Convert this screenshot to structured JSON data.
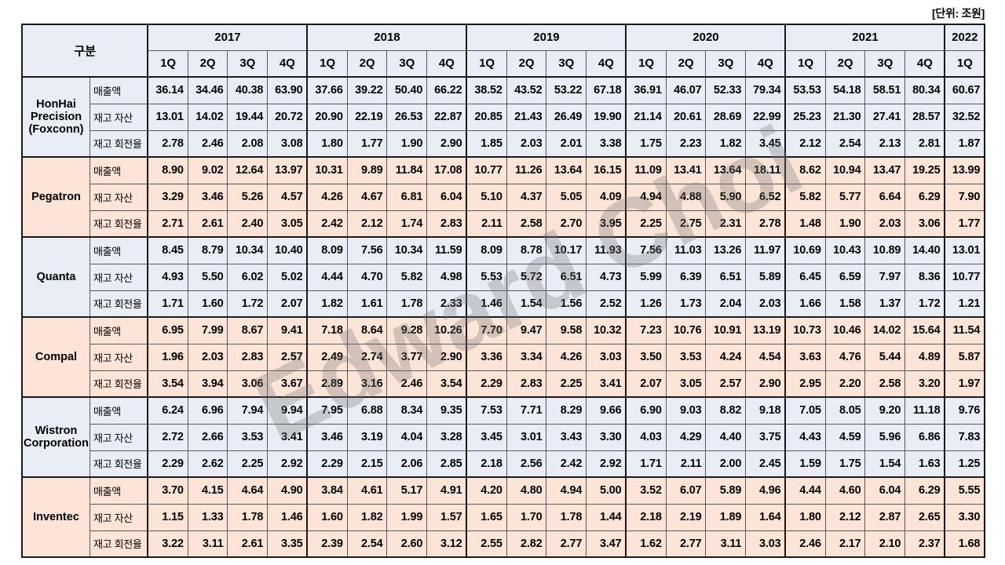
{
  "unit_label": "[단위: 조원]",
  "watermark": "Edward Choi",
  "colors": {
    "band_blue": "#e9eef6",
    "band_peach": "#fce4d6",
    "border_thin": "#595959",
    "border_thick": "#1a1a1a"
  },
  "header": {
    "gubun_label": "구분",
    "year_groups": [
      {
        "year": "2017",
        "quarters": [
          "1Q",
          "2Q",
          "3Q",
          "4Q"
        ]
      },
      {
        "year": "2018",
        "quarters": [
          "1Q",
          "2Q",
          "3Q",
          "4Q"
        ]
      },
      {
        "year": "2019",
        "quarters": [
          "1Q",
          "2Q",
          "3Q",
          "4Q"
        ]
      },
      {
        "year": "2020",
        "quarters": [
          "1Q",
          "2Q",
          "3Q",
          "4Q"
        ]
      },
      {
        "year": "2021",
        "quarters": [
          "1Q",
          "2Q",
          "3Q",
          "4Q"
        ]
      },
      {
        "year": "2022",
        "quarters": [
          "1Q"
        ]
      }
    ]
  },
  "companies": [
    {
      "name": "HonHai Precision (Foxconn)",
      "band": "blue",
      "metrics": [
        {
          "label": "매출액",
          "values": [
            "36.14",
            "34.46",
            "40.38",
            "63.90",
            "37.66",
            "39.22",
            "50.40",
            "66.22",
            "38.52",
            "43.52",
            "53.22",
            "67.18",
            "36.91",
            "46.07",
            "52.33",
            "79.34",
            "53.53",
            "54.18",
            "58.51",
            "80.34",
            "60.67"
          ]
        },
        {
          "label": "재고 자산",
          "values": [
            "13.01",
            "14.02",
            "19.44",
            "20.72",
            "20.90",
            "22.19",
            "26.53",
            "22.87",
            "20.85",
            "21.43",
            "26.49",
            "19.90",
            "21.14",
            "20.61",
            "28.69",
            "22.99",
            "25.23",
            "21.30",
            "27.41",
            "28.57",
            "32.52"
          ]
        },
        {
          "label": "재고 회전율",
          "values": [
            "2.78",
            "2.46",
            "2.08",
            "3.08",
            "1.80",
            "1.77",
            "1.90",
            "2.90",
            "1.85",
            "2.03",
            "2.01",
            "3.38",
            "1.75",
            "2.23",
            "1.82",
            "3.45",
            "2.12",
            "2.54",
            "2.13",
            "2.81",
            "1.87"
          ]
        }
      ]
    },
    {
      "name": "Pegatron",
      "band": "peach",
      "metrics": [
        {
          "label": "매출액",
          "values": [
            "8.90",
            "9.02",
            "12.64",
            "13.97",
            "10.31",
            "9.89",
            "11.84",
            "17.08",
            "10.77",
            "11.26",
            "13.64",
            "16.15",
            "11.09",
            "13.41",
            "13.64",
            "18.11",
            "8.62",
            "10.94",
            "13.47",
            "19.25",
            "13.99"
          ]
        },
        {
          "label": "재고 자산",
          "values": [
            "3.29",
            "3.46",
            "5.26",
            "4.57",
            "4.26",
            "4.67",
            "6.81",
            "6.04",
            "5.10",
            "4.37",
            "5.05",
            "4.09",
            "4.94",
            "4.88",
            "5.90",
            "6.52",
            "5.82",
            "5.77",
            "6.64",
            "6.29",
            "7.90"
          ]
        },
        {
          "label": "재고 회전율",
          "values": [
            "2.71",
            "2.61",
            "2.40",
            "3.05",
            "2.42",
            "2.12",
            "1.74",
            "2.83",
            "2.11",
            "2.58",
            "2.70",
            "3.95",
            "2.25",
            "2.75",
            "2.31",
            "2.78",
            "1.48",
            "1.90",
            "2.03",
            "3.06",
            "1.77"
          ]
        }
      ]
    },
    {
      "name": "Quanta",
      "band": "blue",
      "metrics": [
        {
          "label": "매출액",
          "values": [
            "8.45",
            "8.79",
            "10.34",
            "10.40",
            "8.09",
            "7.56",
            "10.34",
            "11.59",
            "8.09",
            "8.78",
            "10.17",
            "11.93",
            "7.56",
            "11.03",
            "13.26",
            "11.97",
            "10.69",
            "10.43",
            "10.89",
            "14.40",
            "13.01"
          ]
        },
        {
          "label": "재고 자산",
          "values": [
            "4.93",
            "5.50",
            "6.02",
            "5.02",
            "4.44",
            "4.70",
            "5.82",
            "4.98",
            "5.53",
            "5.72",
            "6.51",
            "4.73",
            "5.99",
            "6.39",
            "6.51",
            "5.89",
            "6.45",
            "6.59",
            "7.97",
            "8.36",
            "10.77"
          ]
        },
        {
          "label": "재고 회전율",
          "values": [
            "1.71",
            "1.60",
            "1.72",
            "2.07",
            "1.82",
            "1.61",
            "1.78",
            "2.33",
            "1.46",
            "1.54",
            "1.56",
            "2.52",
            "1.26",
            "1.73",
            "2.04",
            "2.03",
            "1.66",
            "1.58",
            "1.37",
            "1.72",
            "1.21"
          ]
        }
      ]
    },
    {
      "name": "Compal",
      "band": "peach",
      "metrics": [
        {
          "label": "매출액",
          "values": [
            "6.95",
            "7.99",
            "8.67",
            "9.41",
            "7.18",
            "8.64",
            "9.28",
            "10.26",
            "7.70",
            "9.47",
            "9.58",
            "10.32",
            "7.23",
            "10.76",
            "10.91",
            "13.19",
            "10.73",
            "10.46",
            "14.02",
            "15.64",
            "11.54"
          ]
        },
        {
          "label": "재고 자산",
          "values": [
            "1.96",
            "2.03",
            "2.83",
            "2.57",
            "2.49",
            "2.74",
            "3.77",
            "2.90",
            "3.36",
            "3.34",
            "4.26",
            "3.03",
            "3.50",
            "3.53",
            "4.24",
            "4.54",
            "3.63",
            "4.76",
            "5.44",
            "4.89",
            "5.87"
          ]
        },
        {
          "label": "재고 회전율",
          "values": [
            "3.54",
            "3.94",
            "3.06",
            "3.67",
            "2.89",
            "3.16",
            "2.46",
            "3.54",
            "2.29",
            "2.83",
            "2.25",
            "3.41",
            "2.07",
            "3.05",
            "2.57",
            "2.90",
            "2.95",
            "2.20",
            "2.58",
            "3.20",
            "1.97"
          ]
        }
      ]
    },
    {
      "name": "Wistron Corporation",
      "band": "blue",
      "metrics": [
        {
          "label": "매출액",
          "values": [
            "6.24",
            "6.96",
            "7.94",
            "9.94",
            "7.95",
            "6.88",
            "8.34",
            "9.35",
            "7.53",
            "7.71",
            "8.29",
            "9.66",
            "6.90",
            "9.03",
            "8.82",
            "9.18",
            "7.05",
            "8.05",
            "9.20",
            "11.18",
            "9.76"
          ]
        },
        {
          "label": "재고 자산",
          "values": [
            "2.72",
            "2.66",
            "3.53",
            "3.41",
            "3.46",
            "3.19",
            "4.04",
            "3.28",
            "3.45",
            "3.01",
            "3.43",
            "3.30",
            "4.03",
            "4.29",
            "4.40",
            "3.75",
            "4.43",
            "4.59",
            "5.96",
            "6.86",
            "7.83"
          ]
        },
        {
          "label": "재고 회전율",
          "values": [
            "2.29",
            "2.62",
            "2.25",
            "2.92",
            "2.29",
            "2.15",
            "2.06",
            "2.85",
            "2.18",
            "2.56",
            "2.42",
            "2.92",
            "1.71",
            "2.11",
            "2.00",
            "2.45",
            "1.59",
            "1.75",
            "1.54",
            "1.63",
            "1.25"
          ]
        }
      ]
    },
    {
      "name": "Inventec",
      "band": "peach",
      "metrics": [
        {
          "label": "매출액",
          "values": [
            "3.70",
            "4.15",
            "4.64",
            "4.90",
            "3.84",
            "4.61",
            "5.17",
            "4.91",
            "4.20",
            "4.80",
            "4.94",
            "5.00",
            "3.52",
            "6.07",
            "5.89",
            "4.96",
            "4.44",
            "4.60",
            "6.04",
            "6.29",
            "5.55"
          ]
        },
        {
          "label": "재고 자산",
          "values": [
            "1.15",
            "1.33",
            "1.78",
            "1.46",
            "1.60",
            "1.82",
            "1.99",
            "1.57",
            "1.65",
            "1.70",
            "1.78",
            "1.44",
            "2.18",
            "2.19",
            "1.89",
            "1.64",
            "1.80",
            "2.12",
            "2.87",
            "2.65",
            "3.30"
          ]
        },
        {
          "label": "재고 회전율",
          "values": [
            "3.22",
            "3.11",
            "2.61",
            "3.35",
            "2.39",
            "2.54",
            "2.60",
            "3.12",
            "2.55",
            "2.82",
            "2.77",
            "3.47",
            "1.62",
            "2.77",
            "3.11",
            "3.03",
            "2.46",
            "2.17",
            "2.10",
            "2.37",
            "1.68"
          ]
        }
      ]
    }
  ]
}
